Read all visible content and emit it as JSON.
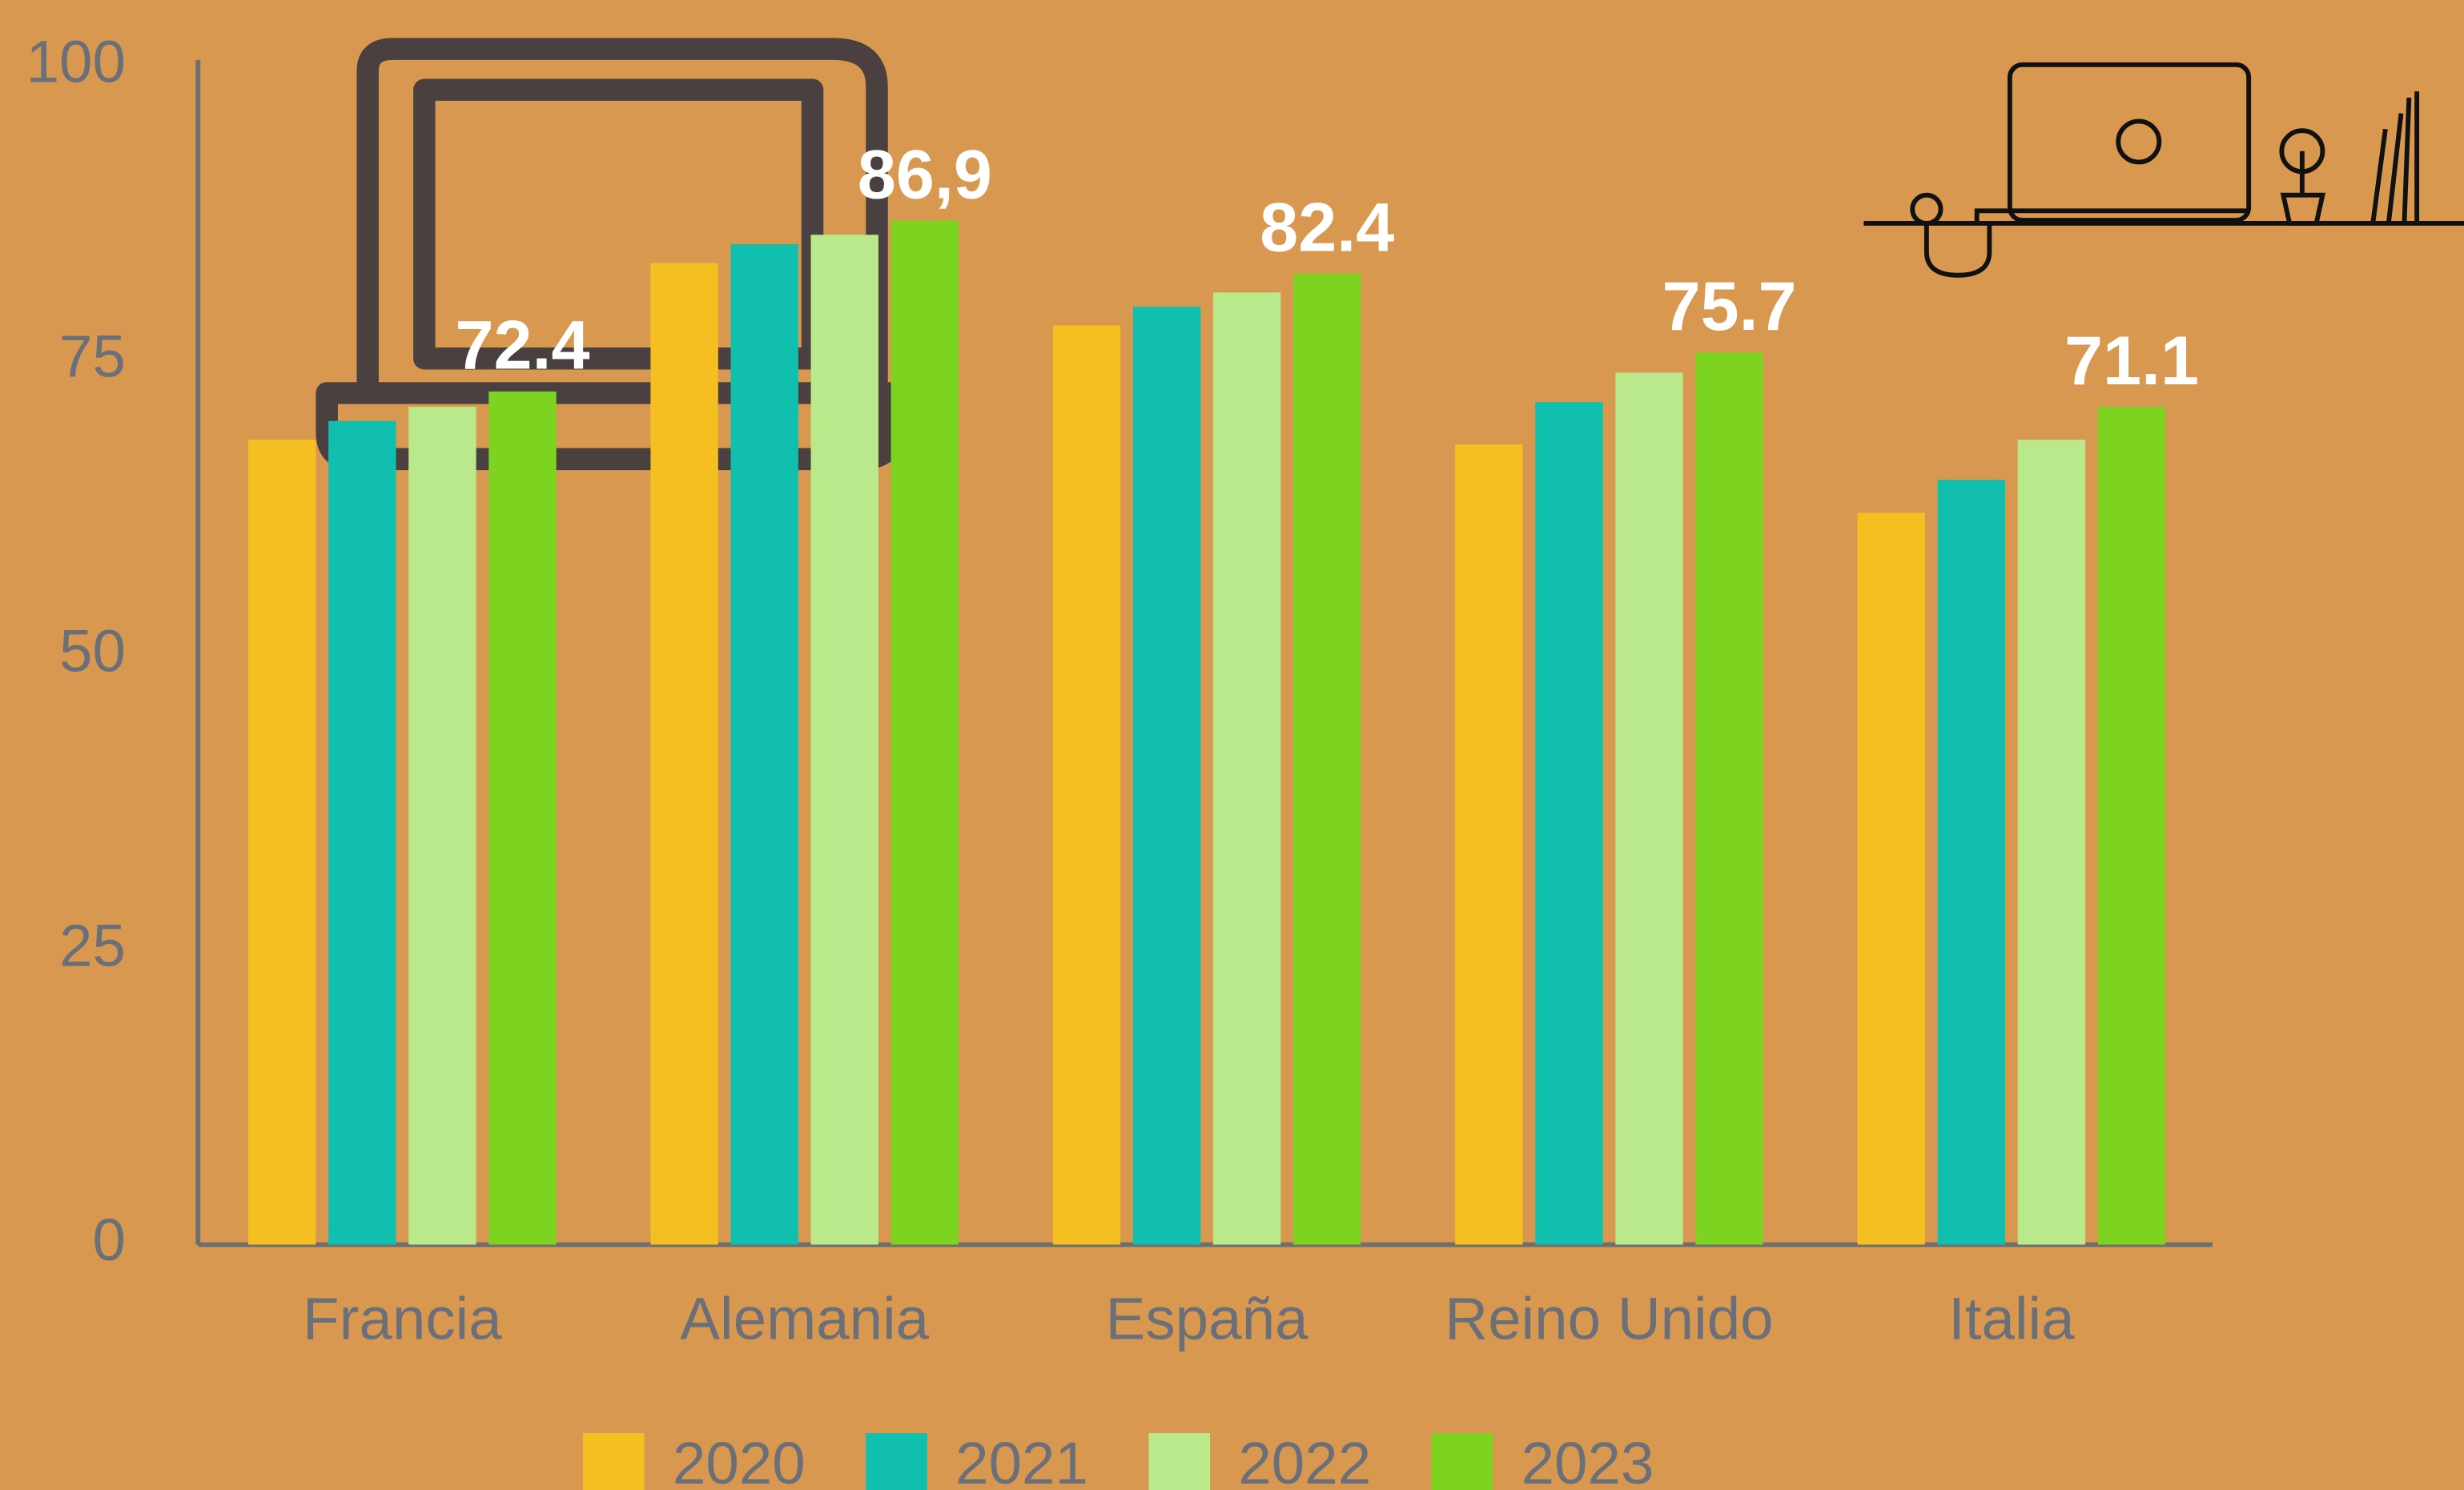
{
  "chart_data": {
    "type": "bar",
    "categories": [
      "Francia",
      "Alemania",
      "España",
      "Reino Unido",
      "Italia"
    ],
    "series": [
      {
        "name": "2020",
        "color": "#f5bf22",
        "values": [
          68.3,
          83.3,
          78.0,
          67.9,
          62.1
        ]
      },
      {
        "name": "2021",
        "color": "#10bfae",
        "values": [
          69.9,
          84.9,
          79.6,
          71.5,
          64.9
        ]
      },
      {
        "name": "2022",
        "color": "#b9e98a",
        "values": [
          71.1,
          85.7,
          80.8,
          74.0,
          68.3
        ]
      },
      {
        "name": "2023",
        "color": "#7dd420",
        "values": [
          72.4,
          86.9,
          82.4,
          75.7,
          71.1
        ],
        "value_labels": [
          "72.4",
          "86,9",
          "82.4",
          "75.7",
          "71.1"
        ]
      }
    ],
    "ylim": [
      0,
      100
    ],
    "yticks": [
      0,
      25,
      50,
      75,
      100
    ],
    "grid": false,
    "legend": "bottom"
  }
}
